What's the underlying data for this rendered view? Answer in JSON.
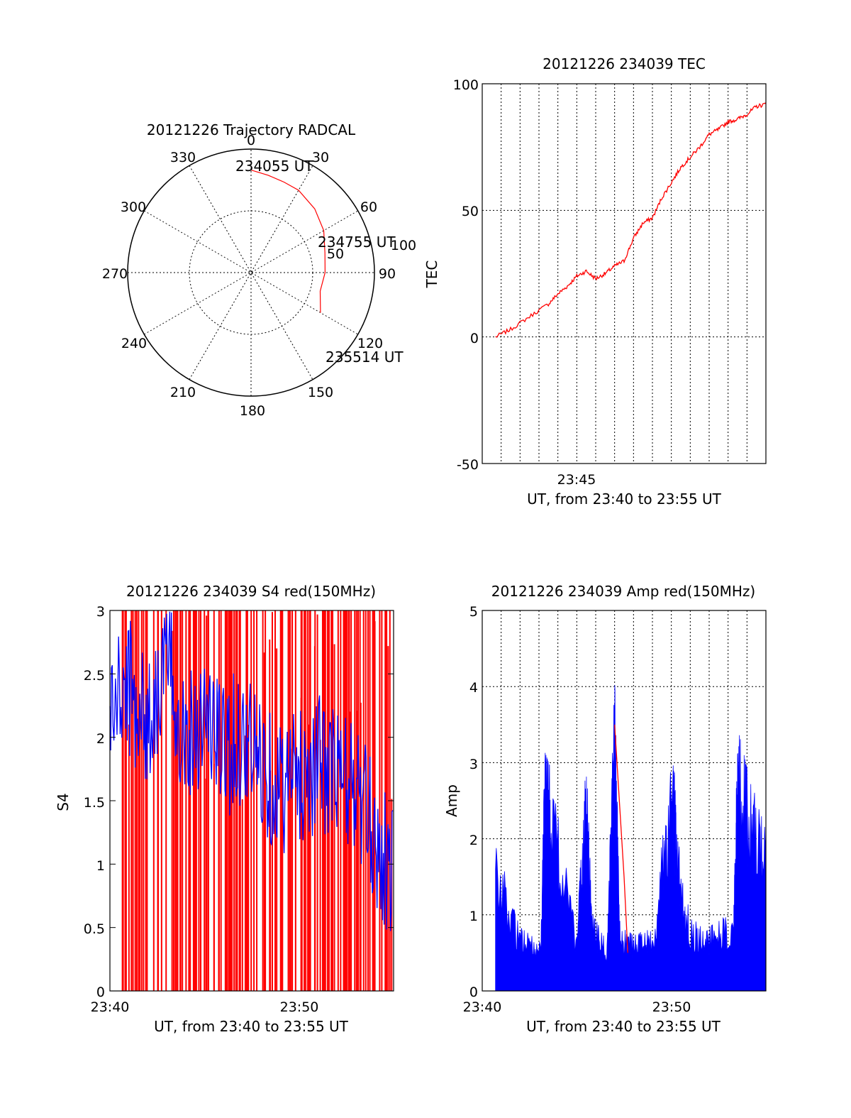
{
  "panels": {
    "polar": {
      "title": "20121226 Trajectory RADCAL",
      "azimuth_labels": [
        "0",
        "30",
        "60",
        "90",
        "120",
        "150",
        "180",
        "210",
        "240",
        "270",
        "300",
        "330"
      ],
      "ring_label": "50",
      "outer_label": "100",
      "time_labels": [
        "234055 UT",
        "234755 UT",
        "235514 UT"
      ]
    },
    "tec": {
      "title": "20121226 234039 TEC",
      "ylabel": "TEC",
      "xlabel": "UT, from 23:40 to 23:55 UT",
      "ytick_labels": [
        "100",
        "50",
        "0",
        "-50"
      ],
      "xtick_labels": [
        "23:45"
      ]
    },
    "s4": {
      "title": "20121226 234039 S4 red(150MHz)",
      "ylabel": "S4",
      "xlabel": "UT, from 23:40 to 23:55 UT",
      "ytick_labels": [
        "3",
        "2.5",
        "2",
        "1.5",
        "1",
        "0.5",
        "0"
      ],
      "xtick_labels": [
        "23:40",
        "23:50"
      ]
    },
    "amp": {
      "title": "20121226 234039 Amp red(150MHz)",
      "ylabel": "Amp",
      "xlabel": "UT, from 23:40 to 23:55 UT",
      "ytick_labels": [
        "5",
        "4",
        "3",
        "2",
        "1",
        "0"
      ],
      "xtick_labels": [
        "23:40",
        "23:50"
      ]
    }
  },
  "colors": {
    "red": "#ff0000",
    "blue": "#0000ff",
    "grid": "#000000"
  },
  "chart_data": [
    {
      "type": "scatter",
      "title": "20121226 Trajectory RADCAL",
      "coordinate_system": "polar (azimuth deg, zenith 0-100)",
      "series": [
        {
          "azimuth_deg": [
            0,
            10,
            20,
            30,
            45,
            60,
            75,
            90,
            105,
            120
          ],
          "zenith": [
            83,
            80,
            78,
            77,
            73,
            68,
            62,
            60,
            58,
            65
          ]
        }
      ],
      "annotations": [
        "234055 UT",
        "234755 UT",
        "235514 UT"
      ]
    },
    {
      "type": "line",
      "title": "20121226 234039 TEC",
      "ylabel": "TEC",
      "xlabel": "UT, from 23:40 to 23:55 UT",
      "xlim": [
        "23:40",
        "23:55"
      ],
      "ylim": [
        -50,
        100
      ],
      "grid": true,
      "series": [
        {
          "x_minutes_after_2340": [
            0.7,
            1.5,
            2.5,
            3.5,
            4.0,
            4.5,
            5.0,
            5.5,
            6.0,
            6.5,
            7.0,
            7.5,
            8.0,
            8.5,
            9.0,
            9.5,
            10.0,
            10.5,
            11.0,
            11.5,
            12.0,
            12.5,
            13.0,
            13.5,
            14.0,
            14.5,
            15.0
          ],
          "values": [
            0,
            3,
            8,
            13,
            17,
            20,
            24,
            26,
            23,
            25,
            28,
            30,
            39,
            45,
            47,
            55,
            61,
            67,
            71,
            75,
            80,
            82,
            85,
            86,
            88,
            91,
            92
          ]
        }
      ]
    },
    {
      "type": "line",
      "title": "20121226 234039 S4 red(150MHz)",
      "ylabel": "S4",
      "xlabel": "UT, from 23:40 to 23:55 UT",
      "xlim": [
        "23:40",
        "23:55"
      ],
      "ylim": [
        0,
        3
      ],
      "series": [
        {
          "name": "",
          "color": "red",
          "x_minutes_after_2340": [
            0,
            3,
            6,
            9,
            12,
            15
          ],
          "values": [
            3,
            3,
            3,
            3,
            3,
            3
          ]
        },
        {
          "name": "",
          "color": "blue",
          "x_minutes_after_2340": [
            0,
            1,
            2,
            3,
            4,
            5,
            6,
            7,
            8,
            9,
            10,
            11,
            12,
            13,
            14,
            15
          ],
          "values": [
            2.2,
            2.4,
            2.1,
            2.6,
            2.0,
            2.2,
            1.9,
            2.0,
            1.8,
            1.6,
            1.7,
            1.8,
            1.7,
            1.6,
            1.2,
            0.9
          ]
        }
      ]
    },
    {
      "type": "line",
      "title": "20121226 234039 Amp red(150MHz)",
      "ylabel": "Amp",
      "xlabel": "UT, from 23:40 to 23:55 UT",
      "xlim": [
        "23:40",
        "23:55"
      ],
      "ylim": [
        0,
        5
      ],
      "series": [
        {
          "name": "",
          "color": "blue",
          "x_minutes_after_2340": [
            0.7,
            2,
            3.1,
            3.3,
            3.6,
            5,
            5.5,
            5.8,
            6.6,
            7.0,
            7.3,
            8,
            9,
            10.1,
            10.3,
            11,
            12,
            13.3,
            13.5,
            14,
            15
          ],
          "values": [
            1.9,
            0.8,
            0.6,
            3.0,
            2.8,
            0.7,
            3.0,
            1.0,
            0.6,
            4.0,
            0.8,
            0.7,
            0.8,
            3.1,
            2.0,
            0.9,
            0.8,
            1.0,
            3.3,
            2.8,
            2.0
          ]
        },
        {
          "name": "",
          "color": "red",
          "x_minutes_after_2340": [
            7.0,
            7.5,
            7.7
          ],
          "values": [
            3.5,
            1.5,
            0.5
          ]
        }
      ]
    }
  ]
}
